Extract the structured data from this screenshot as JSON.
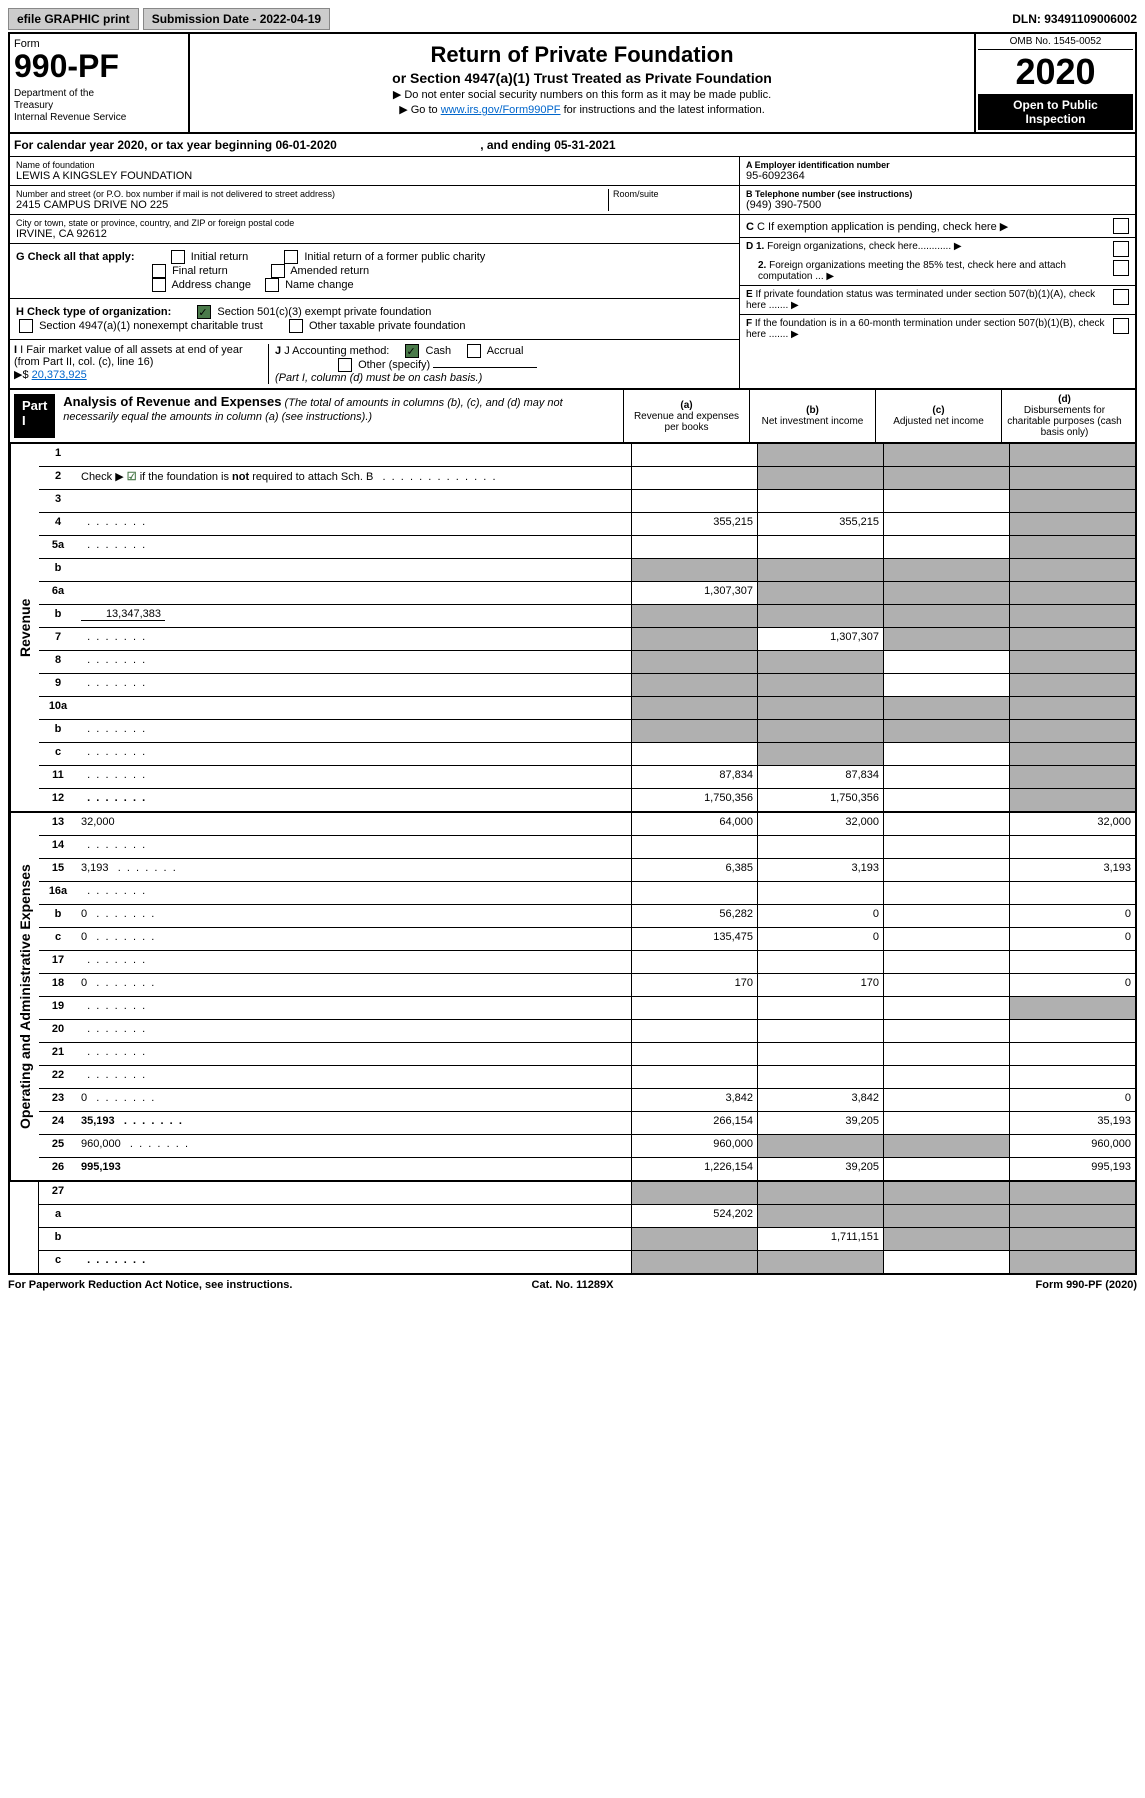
{
  "top": {
    "efile": "efile GRAPHIC print",
    "submission": "Submission Date - 2022-04-19",
    "dln": "DLN: 93491109006002"
  },
  "header": {
    "form_label": "Form",
    "form_number": "990-PF",
    "dept": "Department of the Treasury\nInternal Revenue Service",
    "title": "Return of Private Foundation",
    "subtitle": "or Section 4947(a)(1) Trust Treated as Private Foundation",
    "instr1": "▶ Do not enter social security numbers on this form as it may be made public.",
    "instr2_pre": "▶ Go to ",
    "instr2_link": "www.irs.gov/Form990PF",
    "instr2_post": " for instructions and the latest information.",
    "omb": "OMB No. 1545-0052",
    "year": "2020",
    "open": "Open to Public Inspection"
  },
  "calendar": {
    "text_pre": "For calendar year 2020, or tax year beginning ",
    "begin": "06-01-2020",
    "text_mid": ", and ending ",
    "end": "05-31-2021"
  },
  "info": {
    "name_label": "Name of foundation",
    "name": "LEWIS A KINGSLEY FOUNDATION",
    "street_label": "Number and street (or P.O. box number if mail is not delivered to street address)",
    "street": "2415 CAMPUS DRIVE NO 225",
    "room_label": "Room/suite",
    "city_label": "City or town, state or province, country, and ZIP or foreign postal code",
    "city": "IRVINE, CA  92612",
    "a_label": "A Employer identification number",
    "a_value": "95-6092364",
    "b_label": "B Telephone number (see instructions)",
    "b_value": "(949) 390-7500",
    "c_label": "C If exemption application is pending, check here",
    "d1_label": "D 1. Foreign organizations, check here............",
    "d2_label": "2. Foreign organizations meeting the 85% test, check here and attach computation ...",
    "e_label": "E  If private foundation status was terminated under section 507(b)(1)(A), check here .......",
    "f_label": "F  If the foundation is in a 60-month termination under section 507(b)(1)(B), check here .......",
    "g_label": "G Check all that apply:",
    "g_initial": "Initial return",
    "g_final": "Final return",
    "g_address": "Address change",
    "g_initial_former": "Initial return of a former public charity",
    "g_amended": "Amended return",
    "g_name": "Name change",
    "h_label": "H Check type of organization:",
    "h_501c3": "Section 501(c)(3) exempt private foundation",
    "h_4947": "Section 4947(a)(1) nonexempt charitable trust",
    "h_other": "Other taxable private foundation",
    "i_label": "I Fair market value of all assets at end of year (from Part II, col. (c), line 16)",
    "i_ptr": "▶$",
    "i_value": "20,373,925",
    "j_label": "J Accounting method:",
    "j_cash": "Cash",
    "j_accrual": "Accrual",
    "j_other": "Other (specify)",
    "j_note": "(Part I, column (d) must be on cash basis.)"
  },
  "part1": {
    "label": "Part I",
    "title": "Analysis of Revenue and Expenses",
    "desc": " (The total of amounts in columns (b), (c), and (d) may not necessarily equal the amounts in column (a) (see instructions).)",
    "col_a": "(a)",
    "col_a_sub": "Revenue and expenses per books",
    "col_b": "(b)",
    "col_b_sub": "Net investment income",
    "col_c": "(c)",
    "col_c_sub": "Adjusted net income",
    "col_d": "(d)",
    "col_d_sub": "Disbursements for charitable purposes (cash basis only)"
  },
  "sections": {
    "revenue": "Revenue",
    "expenses": "Operating and Administrative Expenses"
  },
  "rows": [
    {
      "n": "1",
      "d": "",
      "a": "",
      "b": "",
      "c": "",
      "sb": true,
      "sc": true,
      "sd": true
    },
    {
      "n": "2",
      "d": "",
      "dots": true,
      "a": "",
      "b": "",
      "c": "",
      "sb": true,
      "sc": true,
      "sd": true,
      "check": true
    },
    {
      "n": "3",
      "d": "",
      "a": "",
      "b": "",
      "c": "",
      "sd": true
    },
    {
      "n": "4",
      "d": "",
      "dots": true,
      "a": "355,215",
      "b": "355,215",
      "c": "",
      "sd": true
    },
    {
      "n": "5a",
      "d": "",
      "dots": true,
      "a": "",
      "b": "",
      "c": "",
      "sd": true
    },
    {
      "n": "b",
      "d": "",
      "a": "",
      "b": "",
      "c": "",
      "sa": true,
      "sb": true,
      "sc": true,
      "sd": true
    },
    {
      "n": "6a",
      "d": "",
      "a": "1,307,307",
      "b": "",
      "c": "",
      "sb": true,
      "sc": true,
      "sd": true
    },
    {
      "n": "b",
      "d": "",
      "inline": "13,347,383",
      "a": "",
      "b": "",
      "c": "",
      "sa": true,
      "sb": true,
      "sc": true,
      "sd": true
    },
    {
      "n": "7",
      "d": "",
      "dots": true,
      "a": "",
      "b": "1,307,307",
      "c": "",
      "sa": true,
      "sc": true,
      "sd": true
    },
    {
      "n": "8",
      "d": "",
      "dots": true,
      "a": "",
      "b": "",
      "c": "",
      "sa": true,
      "sb": true,
      "sd": true
    },
    {
      "n": "9",
      "d": "",
      "dots": true,
      "a": "",
      "b": "",
      "c": "",
      "sa": true,
      "sb": true,
      "sd": true
    },
    {
      "n": "10a",
      "d": "",
      "a": "",
      "b": "",
      "c": "",
      "sa": true,
      "sb": true,
      "sc": true,
      "sd": true
    },
    {
      "n": "b",
      "d": "",
      "dots": true,
      "a": "",
      "b": "",
      "c": "",
      "sa": true,
      "sb": true,
      "sc": true,
      "sd": true
    },
    {
      "n": "c",
      "d": "",
      "dots": true,
      "a": "",
      "b": "",
      "c": "",
      "sb": true,
      "sd": true
    },
    {
      "n": "11",
      "d": "",
      "dots": true,
      "a": "87,834",
      "b": "87,834",
      "c": "",
      "sd": true
    },
    {
      "n": "12",
      "d": "",
      "dots": true,
      "bold": true,
      "a": "1,750,356",
      "b": "1,750,356",
      "c": "",
      "sd": true
    }
  ],
  "exp_rows": [
    {
      "n": "13",
      "d": "32,000",
      "a": "64,000",
      "b": "32,000",
      "c": ""
    },
    {
      "n": "14",
      "d": "",
      "dots": true,
      "a": "",
      "b": "",
      "c": ""
    },
    {
      "n": "15",
      "d": "3,193",
      "dots": true,
      "a": "6,385",
      "b": "3,193",
      "c": ""
    },
    {
      "n": "16a",
      "d": "",
      "dots": true,
      "a": "",
      "b": "",
      "c": ""
    },
    {
      "n": "b",
      "d": "0",
      "dots": true,
      "a": "56,282",
      "b": "0",
      "c": ""
    },
    {
      "n": "c",
      "d": "0",
      "dots": true,
      "a": "135,475",
      "b": "0",
      "c": ""
    },
    {
      "n": "17",
      "d": "",
      "dots": true,
      "a": "",
      "b": "",
      "c": ""
    },
    {
      "n": "18",
      "d": "0",
      "dots": true,
      "a": "170",
      "b": "170",
      "c": ""
    },
    {
      "n": "19",
      "d": "",
      "dots": true,
      "a": "",
      "b": "",
      "c": "",
      "sd": true
    },
    {
      "n": "20",
      "d": "",
      "dots": true,
      "a": "",
      "b": "",
      "c": ""
    },
    {
      "n": "21",
      "d": "",
      "dots": true,
      "a": "",
      "b": "",
      "c": ""
    },
    {
      "n": "22",
      "d": "",
      "dots": true,
      "a": "",
      "b": "",
      "c": ""
    },
    {
      "n": "23",
      "d": "0",
      "dots": true,
      "a": "3,842",
      "b": "3,842",
      "c": ""
    },
    {
      "n": "24",
      "d": "35,193",
      "dots": true,
      "bold": true,
      "a": "266,154",
      "b": "39,205",
      "c": ""
    },
    {
      "n": "25",
      "d": "960,000",
      "dots": true,
      "a": "960,000",
      "b": "",
      "c": "",
      "sb": true,
      "sc": true
    },
    {
      "n": "26",
      "d": "995,193",
      "bold": true,
      "a": "1,226,154",
      "b": "39,205",
      "c": ""
    }
  ],
  "net_rows": [
    {
      "n": "27",
      "d": "",
      "a": "",
      "b": "",
      "c": "",
      "sa": true,
      "sb": true,
      "sc": true,
      "sd": true
    },
    {
      "n": "a",
      "d": "",
      "bold": true,
      "a": "524,202",
      "b": "",
      "c": "",
      "sb": true,
      "sc": true,
      "sd": true
    },
    {
      "n": "b",
      "d": "",
      "bold": true,
      "a": "",
      "b": "1,711,151",
      "c": "",
      "sa": true,
      "sc": true,
      "sd": true
    },
    {
      "n": "c",
      "d": "",
      "dots": true,
      "bold": true,
      "a": "",
      "b": "",
      "c": "",
      "sa": true,
      "sb": true,
      "sd": true
    }
  ],
  "footer": {
    "left": "For Paperwork Reduction Act Notice, see instructions.",
    "center": "Cat. No. 11289X",
    "right": "Form 990-PF (2020)"
  }
}
